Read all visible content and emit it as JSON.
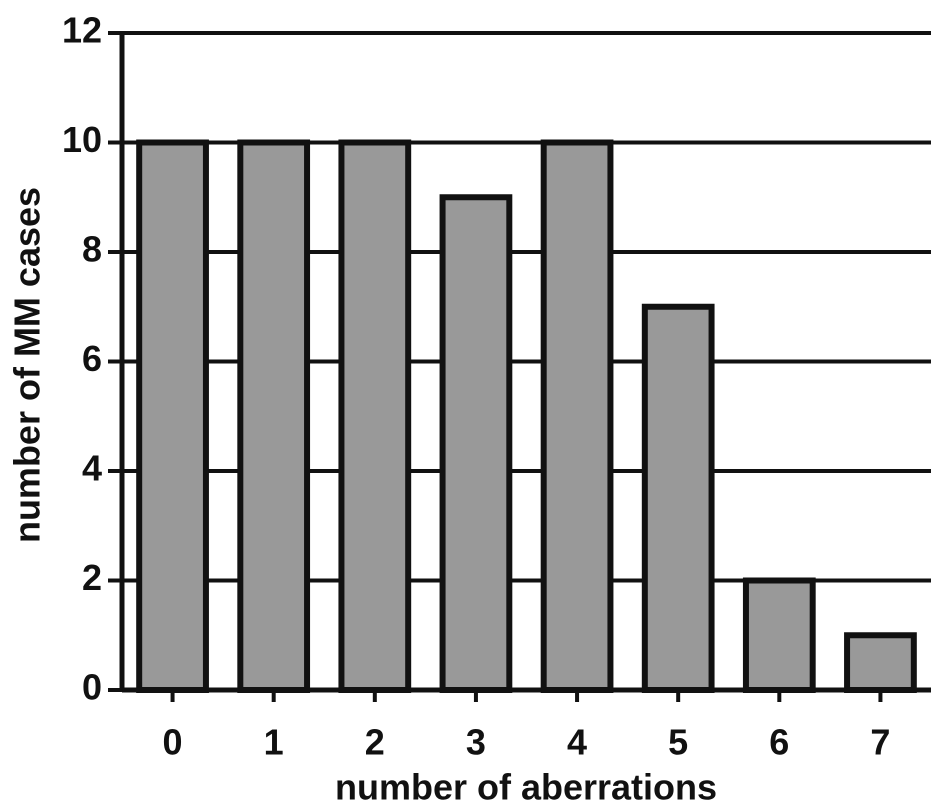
{
  "chart_data": {
    "type": "bar",
    "x_label": "number of aberrations",
    "y_label": "number of MM cases",
    "categories": [
      "0",
      "1",
      "2",
      "3",
      "4",
      "5",
      "6",
      "7"
    ],
    "values": [
      10,
      10,
      10,
      9,
      10,
      7,
      2,
      1
    ],
    "color": "#999999",
    "ylim": [
      0,
      12
    ],
    "yticks": [
      0,
      2,
      4,
      6,
      8,
      10,
      12
    ],
    "grid": true
  }
}
